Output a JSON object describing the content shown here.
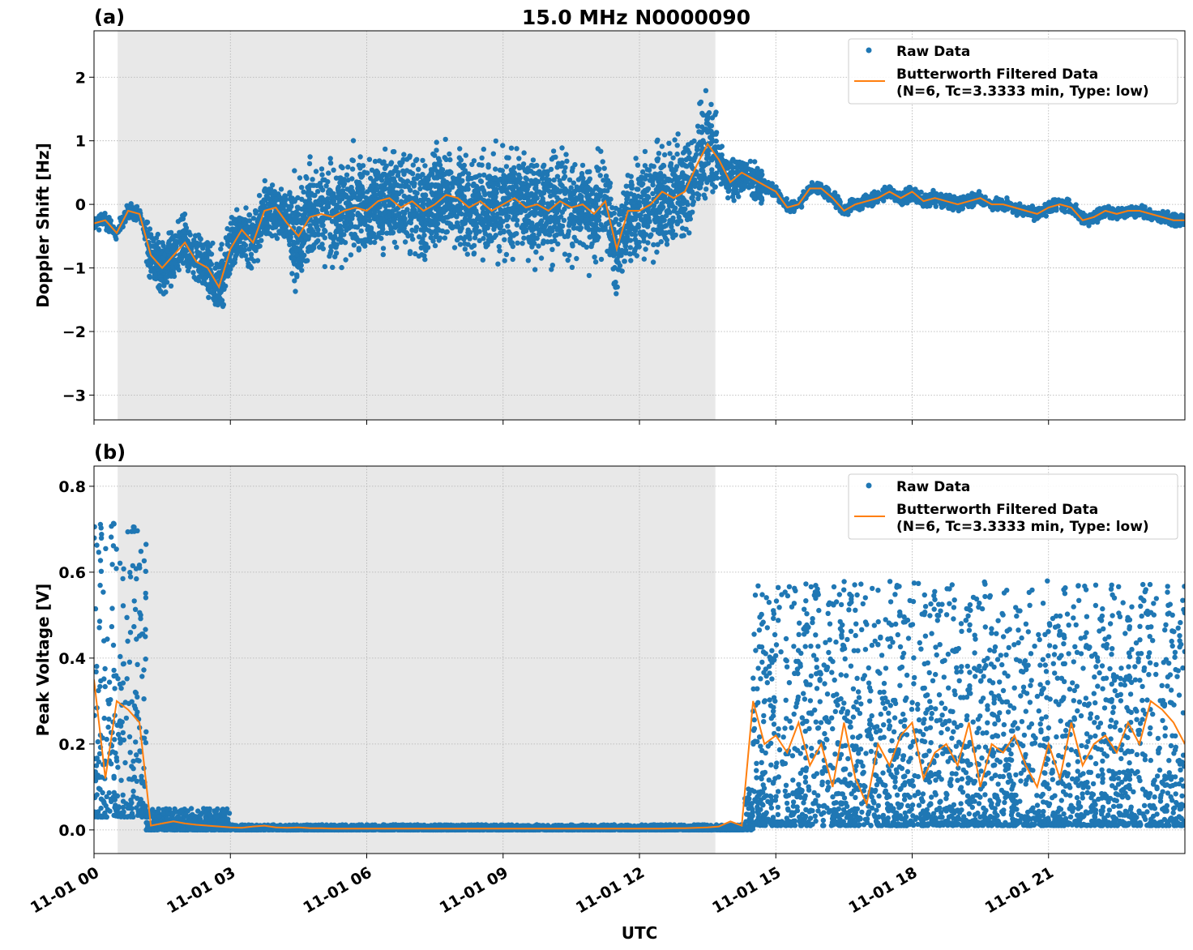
{
  "chart_data": {
    "title": "15.0 MHz N0000090",
    "xlabel": "UTC",
    "x_unit": "hours since 11-01 00:00 UTC",
    "xlim": [
      0,
      24
    ],
    "xticks": [
      0,
      3,
      6,
      9,
      12,
      15,
      18,
      21
    ],
    "xtick_labels": [
      "11-01 00",
      "11-01 03",
      "11-01 06",
      "11-01 09",
      "11-01 12",
      "11-01 15",
      "11-01 18",
      "11-01 21"
    ],
    "shaded_span": [
      0.52,
      13.67
    ],
    "grid": true,
    "colors": {
      "raw": "#1f77b4",
      "filtered": "#ff7f0e",
      "shade": "#e8e8e8"
    },
    "panels": [
      {
        "label": "(a)",
        "type": "scatter+line",
        "ylabel": "Doppler Shift [Hz]",
        "ylim": [
          -3.39,
          2.73
        ],
        "yticks": [
          -3,
          -2,
          -1,
          0,
          1,
          2
        ],
        "ytick_labels": [
          "−3",
          "−2",
          "−1",
          "0",
          "1",
          "2"
        ],
        "legend": {
          "placement": "top-right",
          "entries": [
            "Raw Data",
            "Butterworth Filtered Data",
            "(N=6, Tc=3.3333 min, Type: low)"
          ]
        },
        "filtered_step_hours": 0.25,
        "filtered": [
          -0.3,
          -0.25,
          -0.45,
          -0.1,
          -0.15,
          -0.8,
          -1.0,
          -0.8,
          -0.6,
          -0.9,
          -1.0,
          -1.3,
          -0.7,
          -0.4,
          -0.6,
          -0.1,
          -0.05,
          -0.3,
          -0.5,
          -0.2,
          -0.15,
          -0.2,
          -0.1,
          -0.05,
          -0.1,
          0.05,
          0.1,
          -0.05,
          0.05,
          -0.1,
          0.0,
          0.15,
          0.1,
          -0.05,
          0.05,
          -0.1,
          0.0,
          0.1,
          -0.05,
          0.0,
          -0.1,
          0.05,
          -0.05,
          0.0,
          -0.15,
          0.05,
          -0.7,
          -0.1,
          -0.1,
          0.0,
          0.2,
          0.1,
          0.2,
          0.6,
          0.95,
          0.7,
          0.35,
          0.5,
          0.4,
          0.3,
          0.2,
          -0.05,
          0.0,
          0.25,
          0.25,
          0.1,
          -0.1,
          0.0,
          0.05,
          0.1,
          0.2,
          0.1,
          0.2,
          0.05,
          0.1,
          0.05,
          0.0,
          0.05,
          0.1,
          0.0,
          0.0,
          -0.05,
          -0.1,
          -0.15,
          -0.05,
          0.0,
          -0.05,
          -0.25,
          -0.2,
          -0.1,
          -0.15,
          -0.1,
          -0.1,
          -0.15,
          -0.2,
          -0.25,
          -0.25
        ],
        "raw_spread_about_filtered": [
          {
            "from": 0,
            "to": 1.15,
            "spread": 0.15
          },
          {
            "from": 1.15,
            "to": 4.3,
            "spread": 0.55
          },
          {
            "from": 4.3,
            "to": 13.7,
            "spread": 1.0
          },
          {
            "from": 13.7,
            "to": 14.7,
            "spread": 0.4
          },
          {
            "from": 14.7,
            "to": 24,
            "spread": 0.13
          }
        ]
      },
      {
        "label": "(b)",
        "type": "scatter+line",
        "ylabel": "Peak Voltage [V]",
        "ylim": [
          -0.055,
          0.847
        ],
        "yticks": [
          0.0,
          0.2,
          0.4,
          0.6,
          0.8
        ],
        "ytick_labels": [
          "0.0",
          "0.2",
          "0.4",
          "0.6",
          "0.8"
        ],
        "legend": {
          "placement": "top-right",
          "entries": [
            "Raw Data",
            "Butterworth Filtered Data",
            "(N=6, Tc=3.3333 min, Type: low)"
          ]
        },
        "filtered_step_hours": 0.25,
        "filtered": [
          0.35,
          0.12,
          0.3,
          0.28,
          0.25,
          0.01,
          0.015,
          0.02,
          0.015,
          0.012,
          0.01,
          0.008,
          0.006,
          0.005,
          0.008,
          0.01,
          0.006,
          0.005,
          0.006,
          0.004,
          0.004,
          0.003,
          0.003,
          0.003,
          0.003,
          0.003,
          0.003,
          0.003,
          0.003,
          0.003,
          0.003,
          0.003,
          0.003,
          0.003,
          0.003,
          0.003,
          0.003,
          0.003,
          0.003,
          0.003,
          0.003,
          0.003,
          0.003,
          0.003,
          0.003,
          0.003,
          0.003,
          0.003,
          0.003,
          0.003,
          0.003,
          0.004,
          0.004,
          0.005,
          0.006,
          0.008,
          0.02,
          0.01,
          0.3,
          0.2,
          0.22,
          0.18,
          0.25,
          0.15,
          0.2,
          0.1,
          0.25,
          0.12,
          0.06,
          0.2,
          0.15,
          0.22,
          0.25,
          0.12,
          0.18,
          0.2,
          0.15,
          0.25,
          0.1,
          0.2,
          0.18,
          0.22,
          0.15,
          0.1,
          0.2,
          0.12,
          0.25,
          0.15,
          0.2,
          0.22,
          0.18,
          0.25,
          0.2,
          0.3,
          0.28,
          0.25,
          0.2
        ],
        "raw_range": [
          {
            "from": 0,
            "to": 1.15,
            "lo": 0.03,
            "hi": 0.72
          },
          {
            "from": 1.15,
            "to": 3,
            "lo": 0.0,
            "hi": 0.05
          },
          {
            "from": 3,
            "to": 14.3,
            "lo": 0.0,
            "hi": 0.012
          },
          {
            "from": 14.3,
            "to": 14.5,
            "lo": 0.0,
            "hi": 0.1
          },
          {
            "from": 14.5,
            "to": 24,
            "lo": 0.01,
            "hi": 0.58
          }
        ]
      }
    ]
  }
}
